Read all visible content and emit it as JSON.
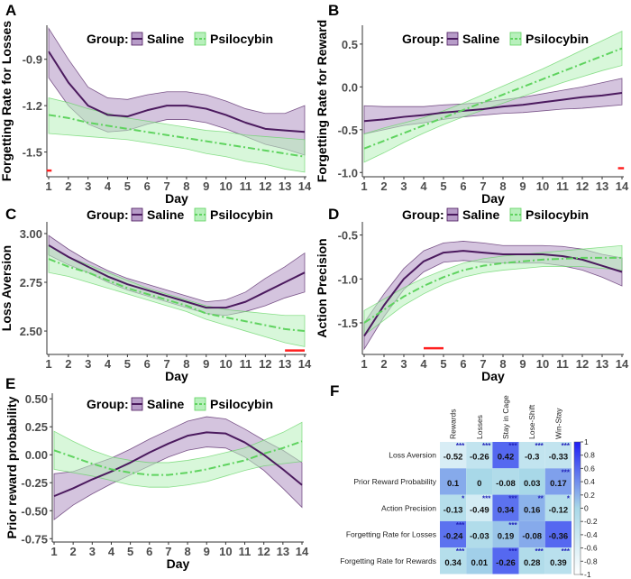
{
  "legend": {
    "title": "Group:",
    "saline": "Saline",
    "psilocybin": "Psilocybin"
  },
  "colors": {
    "saline": "#4b1a5e",
    "saline_fill": "#b79cc8",
    "psilocybin": "#5fd35f",
    "psilocybin_fill": "#b8f0bc",
    "marker": "#ff2020"
  },
  "chart_data": [
    {
      "panel": "A",
      "type": "line",
      "xlabel": "Day",
      "ylabel": "Forgetting Rate for Losses",
      "x": [
        1,
        2,
        3,
        4,
        5,
        6,
        7,
        8,
        9,
        10,
        11,
        12,
        13,
        14
      ],
      "ylim": [
        -1.66,
        -0.68
      ],
      "yticks": [
        -0.9,
        -1.2,
        -1.5
      ],
      "yticklabels": [
        "-0.9",
        "-1.2",
        "-1.5"
      ],
      "series": [
        {
          "name": "Saline",
          "mean": [
            -0.85,
            -1.05,
            -1.2,
            -1.26,
            -1.27,
            -1.23,
            -1.2,
            -1.2,
            -1.22,
            -1.26,
            -1.31,
            -1.35,
            -1.36,
            -1.37
          ],
          "lower": [
            -1.02,
            -1.2,
            -1.32,
            -1.37,
            -1.36,
            -1.32,
            -1.29,
            -1.29,
            -1.31,
            -1.35,
            -1.4,
            -1.45,
            -1.48,
            -1.52
          ],
          "upper": [
            -0.7,
            -0.9,
            -1.08,
            -1.15,
            -1.16,
            -1.13,
            -1.11,
            -1.11,
            -1.13,
            -1.17,
            -1.22,
            -1.25,
            -1.25,
            -1.2
          ]
        },
        {
          "name": "Psilocybin",
          "mean": [
            -1.26,
            -1.28,
            -1.31,
            -1.33,
            -1.35,
            -1.37,
            -1.39,
            -1.41,
            -1.43,
            -1.45,
            -1.47,
            -1.49,
            -1.51,
            -1.53
          ],
          "lower": [
            -1.38,
            -1.39,
            -1.4,
            -1.41,
            -1.42,
            -1.44,
            -1.46,
            -1.48,
            -1.51,
            -1.53,
            -1.56,
            -1.58,
            -1.61,
            -1.63
          ],
          "upper": [
            -1.15,
            -1.18,
            -1.22,
            -1.25,
            -1.28,
            -1.3,
            -1.32,
            -1.34,
            -1.36,
            -1.37,
            -1.39,
            -1.4,
            -1.41,
            -1.42
          ]
        }
      ],
      "marker": {
        "x": [
          0.9,
          1.15
        ],
        "y": -1.62
      }
    },
    {
      "panel": "B",
      "type": "line",
      "xlabel": "Day",
      "ylabel": "Forgetting Rate for Reward",
      "x": [
        1,
        2,
        3,
        4,
        5,
        6,
        7,
        8,
        9,
        10,
        11,
        12,
        13,
        14
      ],
      "ylim": [
        -1.05,
        0.72
      ],
      "yticks": [
        0.5,
        0.0,
        -0.5,
        -1.0
      ],
      "yticklabels": [
        "0.5",
        "0.0",
        "-0.5",
        "-1.0"
      ],
      "series": [
        {
          "name": "Saline",
          "mean": [
            -0.4,
            -0.38,
            -0.35,
            -0.33,
            -0.3,
            -0.28,
            -0.26,
            -0.23,
            -0.21,
            -0.18,
            -0.15,
            -0.12,
            -0.1,
            -0.07
          ],
          "lower": [
            -0.55,
            -0.5,
            -0.45,
            -0.42,
            -0.38,
            -0.35,
            -0.33,
            -0.31,
            -0.3,
            -0.28,
            -0.26,
            -0.25,
            -0.23,
            -0.21
          ],
          "upper": [
            -0.22,
            -0.23,
            -0.23,
            -0.23,
            -0.21,
            -0.2,
            -0.18,
            -0.15,
            -0.12,
            -0.08,
            -0.04,
            0.0,
            0.05,
            0.1
          ]
        },
        {
          "name": "Psilocybin",
          "mean": [
            -0.72,
            -0.63,
            -0.54,
            -0.45,
            -0.36,
            -0.27,
            -0.18,
            -0.09,
            0.0,
            0.09,
            0.18,
            0.27,
            0.36,
            0.45
          ],
          "lower": [
            -0.88,
            -0.77,
            -0.65,
            -0.54,
            -0.44,
            -0.35,
            -0.27,
            -0.19,
            -0.11,
            -0.03,
            0.05,
            0.12,
            0.19,
            0.25
          ],
          "upper": [
            -0.55,
            -0.48,
            -0.42,
            -0.36,
            -0.28,
            -0.19,
            -0.09,
            0.01,
            0.11,
            0.21,
            0.32,
            0.43,
            0.54,
            0.65
          ]
        }
      ],
      "marker": {
        "x": [
          13.8,
          14.1
        ],
        "y": -0.95
      }
    },
    {
      "panel": "C",
      "type": "line",
      "xlabel": "Day",
      "ylabel": "Loss Aversion",
      "x": [
        1,
        2,
        3,
        4,
        5,
        6,
        7,
        8,
        9,
        10,
        11,
        12,
        13,
        14
      ],
      "ylim": [
        2.38,
        3.06
      ],
      "yticks": [
        3.0,
        2.75,
        2.5
      ],
      "yticklabels": [
        "3.00",
        "2.75",
        "2.50"
      ],
      "series": [
        {
          "name": "Saline",
          "mean": [
            2.94,
            2.88,
            2.83,
            2.78,
            2.74,
            2.71,
            2.68,
            2.65,
            2.62,
            2.62,
            2.65,
            2.7,
            2.75,
            2.8
          ],
          "lower": [
            2.89,
            2.84,
            2.8,
            2.75,
            2.71,
            2.68,
            2.65,
            2.62,
            2.59,
            2.58,
            2.6,
            2.63,
            2.67,
            2.7
          ],
          "upper": [
            2.99,
            2.92,
            2.86,
            2.81,
            2.77,
            2.74,
            2.71,
            2.68,
            2.65,
            2.66,
            2.7,
            2.77,
            2.83,
            2.9
          ]
        },
        {
          "name": "Psilocybin",
          "mean": [
            2.87,
            2.83,
            2.8,
            2.76,
            2.72,
            2.69,
            2.66,
            2.63,
            2.59,
            2.57,
            2.55,
            2.53,
            2.51,
            2.5
          ],
          "lower": [
            2.8,
            2.78,
            2.75,
            2.72,
            2.69,
            2.66,
            2.63,
            2.6,
            2.56,
            2.53,
            2.5,
            2.47,
            2.44,
            2.42
          ],
          "upper": [
            2.94,
            2.88,
            2.84,
            2.8,
            2.76,
            2.72,
            2.69,
            2.66,
            2.63,
            2.61,
            2.6,
            2.59,
            2.58,
            2.58
          ]
        }
      ],
      "marker": {
        "x": [
          13,
          14
        ],
        "y": 2.4
      }
    },
    {
      "panel": "D",
      "type": "line",
      "xlabel": "Day",
      "ylabel": "Action Precision",
      "x": [
        1,
        2,
        3,
        4,
        5,
        6,
        7,
        8,
        9,
        10,
        11,
        12,
        13,
        14
      ],
      "ylim": [
        -1.86,
        -0.35
      ],
      "yticks": [
        -0.5,
        -1.0,
        -1.5
      ],
      "yticklabels": [
        "-0.5",
        "-1.0",
        "-1.5"
      ],
      "series": [
        {
          "name": "Saline",
          "mean": [
            -1.65,
            -1.3,
            -1.0,
            -0.8,
            -0.7,
            -0.68,
            -0.7,
            -0.72,
            -0.72,
            -0.72,
            -0.74,
            -0.78,
            -0.85,
            -0.92
          ],
          "lower": [
            -1.8,
            -1.43,
            -1.12,
            -0.92,
            -0.81,
            -0.79,
            -0.81,
            -0.82,
            -0.82,
            -0.82,
            -0.85,
            -0.9,
            -0.98,
            -1.08
          ],
          "upper": [
            -1.5,
            -1.17,
            -0.88,
            -0.68,
            -0.59,
            -0.57,
            -0.59,
            -0.62,
            -0.62,
            -0.62,
            -0.63,
            -0.66,
            -0.72,
            -0.76
          ]
        },
        {
          "name": "Psilocybin",
          "mean": [
            -1.5,
            -1.35,
            -1.2,
            -1.08,
            -0.98,
            -0.9,
            -0.85,
            -0.82,
            -0.8,
            -0.78,
            -0.77,
            -0.76,
            -0.76,
            -0.76
          ],
          "lower": [
            -1.64,
            -1.47,
            -1.3,
            -1.17,
            -1.06,
            -0.98,
            -0.93,
            -0.9,
            -0.88,
            -0.86,
            -0.86,
            -0.86,
            -0.88,
            -0.9
          ],
          "upper": [
            -1.36,
            -1.23,
            -1.1,
            -0.99,
            -0.9,
            -0.82,
            -0.77,
            -0.74,
            -0.72,
            -0.7,
            -0.68,
            -0.66,
            -0.64,
            -0.62
          ]
        }
      ],
      "marker": {
        "x": [
          4,
          5
        ],
        "y": -1.79
      }
    },
    {
      "panel": "E",
      "type": "line",
      "xlabel": "Day",
      "ylabel": "Prior reward probability",
      "x": [
        1,
        2,
        3,
        4,
        5,
        6,
        7,
        8,
        9,
        10,
        11,
        12,
        13,
        14
      ],
      "ylim": [
        -0.78,
        0.55
      ],
      "yticks": [
        0.5,
        0.25,
        0.0,
        -0.25,
        -0.5,
        -0.75
      ],
      "yticklabels": [
        "0.50",
        "0.25",
        "0.00",
        "-0.25",
        "-0.50",
        "-0.75"
      ],
      "series": [
        {
          "name": "Saline",
          "mean": [
            -0.37,
            -0.3,
            -0.22,
            -0.15,
            -0.07,
            0.02,
            0.1,
            0.17,
            0.2,
            0.19,
            0.11,
            0.0,
            -0.13,
            -0.27
          ],
          "lower": [
            -0.58,
            -0.45,
            -0.35,
            -0.26,
            -0.18,
            -0.1,
            -0.02,
            0.04,
            0.07,
            0.06,
            -0.02,
            -0.14,
            -0.3,
            -0.47
          ],
          "upper": [
            -0.17,
            -0.15,
            -0.09,
            -0.03,
            0.05,
            0.14,
            0.22,
            0.3,
            0.34,
            0.32,
            0.23,
            0.13,
            0.04,
            -0.07
          ]
        },
        {
          "name": "Psilocybin",
          "mean": [
            0.04,
            -0.02,
            -0.08,
            -0.13,
            -0.16,
            -0.18,
            -0.18,
            -0.16,
            -0.13,
            -0.09,
            -0.05,
            0.01,
            0.06,
            0.12
          ],
          "lower": [
            -0.13,
            -0.16,
            -0.19,
            -0.23,
            -0.27,
            -0.29,
            -0.29,
            -0.27,
            -0.24,
            -0.19,
            -0.14,
            -0.1,
            -0.08,
            -0.06
          ],
          "upper": [
            0.21,
            0.12,
            0.04,
            -0.02,
            -0.05,
            -0.07,
            -0.07,
            -0.05,
            -0.02,
            0.02,
            0.06,
            0.13,
            0.2,
            0.29
          ]
        }
      ]
    },
    {
      "panel": "F",
      "type": "heatmap",
      "columns": [
        "Rewards",
        "Losses",
        "Stay in Cage",
        "Lose-Shift",
        "Win-Stay"
      ],
      "rows": [
        "Loss Aversion",
        "Prior Reward Probability",
        "Action Precision",
        "Forgetting Rate for Losses",
        "Forgetting Rate for Rewards"
      ],
      "values": [
        [
          -0.52,
          -0.26,
          0.42,
          -0.3,
          -0.33
        ],
        [
          0.1,
          0,
          -0.08,
          0.03,
          0.17
        ],
        [
          -0.13,
          -0.49,
          0.34,
          0.16,
          -0.12
        ],
        [
          -0.24,
          -0.03,
          0.19,
          -0.08,
          -0.36
        ],
        [
          0.34,
          0.01,
          -0.26,
          0.28,
          0.39
        ]
      ],
      "labels": [
        [
          "-0.52",
          "-0.26",
          "0.42",
          "-0.3",
          "-0.33"
        ],
        [
          "0.1",
          "0",
          "-0.08",
          "0.03",
          "0.17"
        ],
        [
          "-0.13",
          "-0.49",
          "0.34",
          "0.16",
          "-0.12"
        ],
        [
          "-0.24",
          "-0.03",
          "0.19",
          "-0.08",
          "-0.36"
        ],
        [
          "0.34",
          "0.01",
          "-0.26",
          "0.28",
          "0.39"
        ]
      ],
      "cell_colors": [
        [
          -0.55,
          -0.3,
          0.6,
          -0.3,
          -0.3
        ],
        [
          0.25,
          0,
          -0.1,
          0.0,
          0.3
        ],
        [
          -0.15,
          -0.5,
          0.55,
          0.2,
          -0.15
        ],
        [
          0.55,
          -0.1,
          0.1,
          0.25,
          0.6
        ],
        [
          -0.15,
          0.05,
          0.6,
          -0.1,
          -0.2
        ]
      ],
      "significance": [
        [
          "***",
          "***",
          "***",
          "***",
          "***"
        ],
        [
          "",
          "",
          "",
          "",
          "***"
        ],
        [
          "*",
          "***",
          "***",
          "**",
          "*"
        ],
        [
          "***",
          "",
          "***",
          "",
          ""
        ],
        [
          "***",
          "",
          "***",
          "***",
          "***"
        ]
      ],
      "colorbar": {
        "ticks": [
          1,
          0.8,
          0.6,
          0.4,
          0.2,
          0,
          -0.2,
          -0.4,
          -0.6,
          -0.8,
          -1
        ],
        "ticklabels": [
          "1",
          "0.8",
          "0.6",
          "0.4",
          "0.2",
          "0",
          "-0.2",
          "-0.4",
          "-0.6",
          "-0.8",
          "-1"
        ],
        "range": [
          -1,
          1
        ]
      }
    }
  ],
  "panel_labels": [
    "A",
    "B",
    "C",
    "D",
    "E",
    "F"
  ]
}
